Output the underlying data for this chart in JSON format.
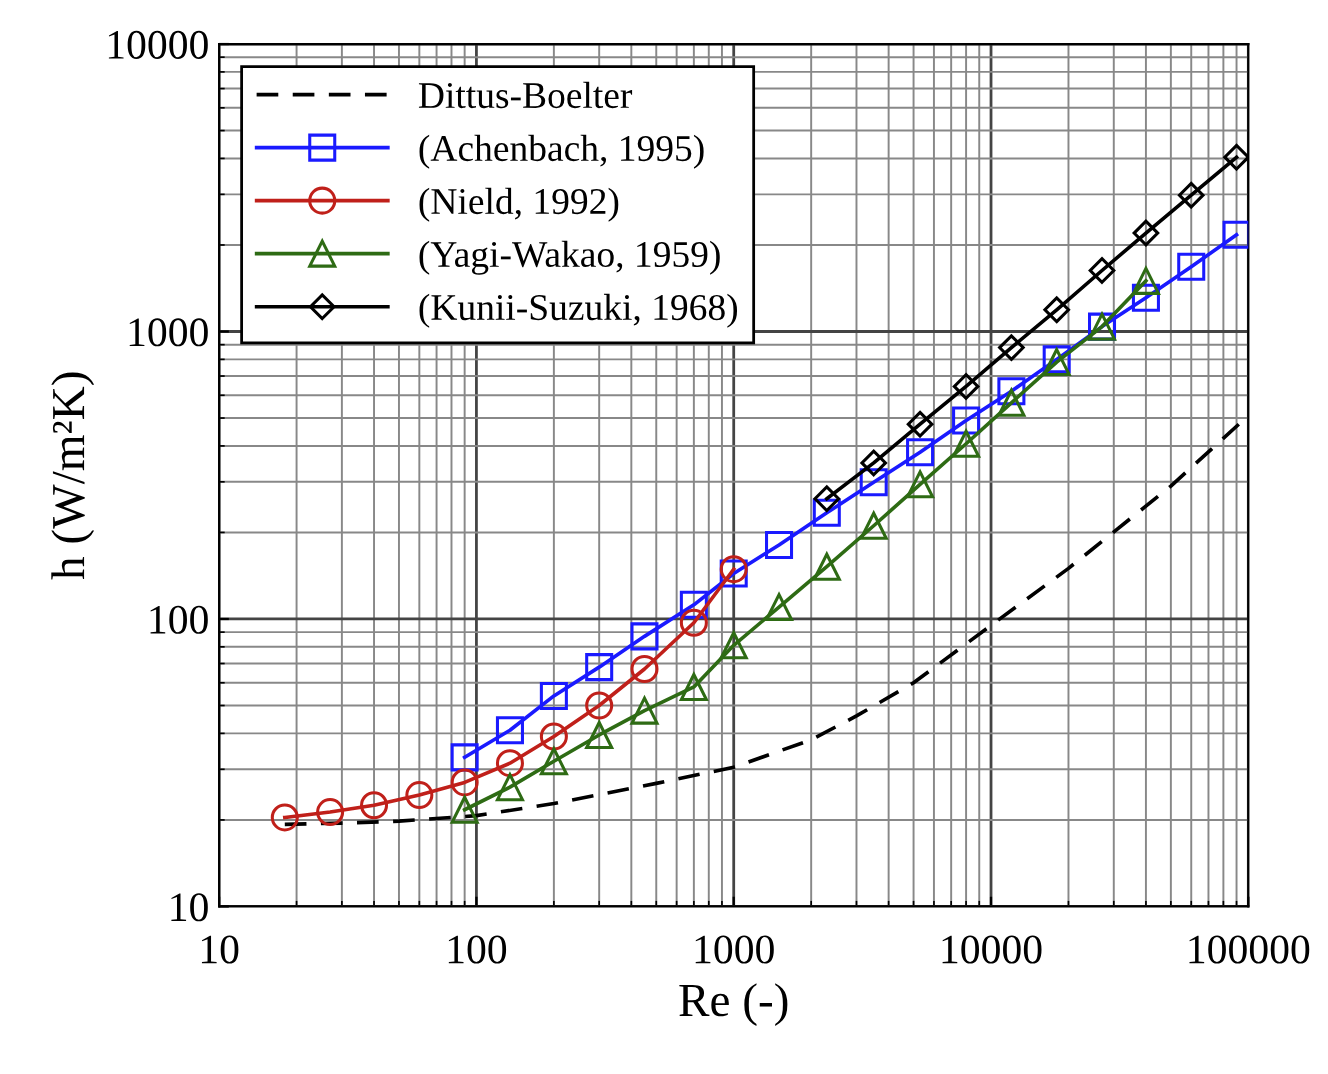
{
  "chart_data": {
    "type": "line",
    "xlabel": "Re (-)",
    "ylabel": "h (W/m²K)",
    "log": "xy",
    "xlim": [
      10,
      100000
    ],
    "ylim": [
      10,
      10000
    ],
    "xticks": [
      10,
      100,
      1000,
      10000,
      100000
    ],
    "yticks": [
      10,
      100,
      1000,
      10000
    ],
    "grid": true,
    "legend": "top left",
    "series": [
      {
        "name": "Dittus-Boelter",
        "color": "#000000",
        "line_style": "dashed",
        "marker": "none",
        "x": [
          18,
          30,
          50,
          100,
          200,
          300,
          500,
          1000,
          2000,
          3000,
          5000,
          10000,
          20000,
          50000,
          100000
        ],
        "values": [
          19.3,
          19.5,
          19.8,
          20.7,
          22.8,
          24.5,
          26.8,
          30.5,
          38,
          46,
          60,
          95,
          150,
          290,
          510
        ]
      },
      {
        "name": "(Achenbach, 1995)",
        "color": "#1a1aff",
        "marker": "square",
        "line_style": "solid",
        "x": [
          90,
          135,
          200,
          300,
          450,
          700,
          1000,
          1500,
          2300,
          3500,
          5300,
          8000,
          12000,
          18000,
          27000,
          40000,
          60000,
          90000
        ],
        "values": [
          33,
          41,
          54,
          68,
          87,
          112,
          144,
          181,
          234,
          299,
          380,
          490,
          620,
          800,
          1040,
          1310,
          1680,
          2170
        ]
      },
      {
        "name": "(Nield, 1992)",
        "color": "#c0201a",
        "marker": "circle",
        "line_style": "solid",
        "x": [
          18,
          27,
          40,
          60,
          90,
          135,
          200,
          300,
          450,
          700,
          1000
        ],
        "values": [
          20.4,
          21.3,
          22.5,
          24.4,
          27,
          31.5,
          39,
          50,
          67,
          97,
          149
        ]
      },
      {
        "name": "(Yagi-Wakao, 1959)",
        "color": "#2e6b14",
        "marker": "triangle",
        "line_style": "solid",
        "x": [
          90,
          135,
          200,
          300,
          450,
          700,
          1000,
          1500,
          2300,
          3500,
          5300,
          8000,
          12000,
          18000,
          27000,
          40000
        ],
        "values": [
          21.7,
          26,
          32,
          39.5,
          48,
          58,
          81,
          110,
          152,
          211,
          294,
          407,
          565,
          783,
          1040,
          1500
        ]
      },
      {
        "name": "(Kunii-Suzuki, 1968)",
        "color": "#000000",
        "marker": "diamond",
        "line_style": "solid",
        "x": [
          2300,
          3500,
          5300,
          8000,
          12000,
          18000,
          27000,
          40000,
          60000,
          90000
        ],
        "values": [
          262,
          349,
          476,
          644,
          879,
          1190,
          1630,
          2200,
          2980,
          4040
        ]
      }
    ]
  }
}
